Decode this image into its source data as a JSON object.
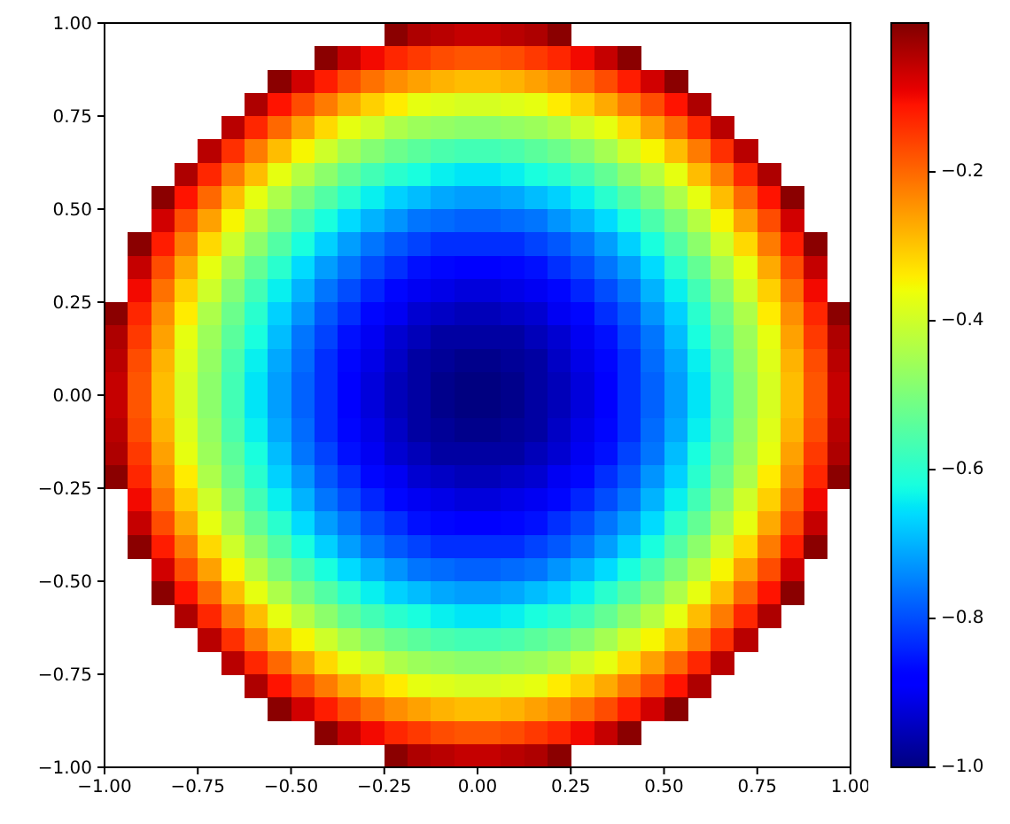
{
  "chart_data": {
    "type": "heatmap",
    "cells": [
      [
        null,
        null,
        null,
        null,
        null,
        null,
        null,
        null,
        null,
        null,
        null,
        null,
        -0.01,
        -0.04,
        -0.05,
        -0.06,
        -0.06,
        -0.05,
        -0.04,
        -0.01,
        null,
        null,
        null,
        null,
        null,
        null,
        null,
        null,
        null,
        null,
        null,
        null
      ],
      [
        null,
        null,
        null,
        null,
        null,
        null,
        null,
        null,
        null,
        -0.01,
        -0.06,
        -0.1,
        -0.13,
        -0.15,
        -0.17,
        -0.18,
        -0.18,
        -0.17,
        -0.15,
        -0.13,
        -0.1,
        -0.06,
        -0.01,
        null,
        null,
        null,
        null,
        null,
        null,
        null,
        null,
        null
      ],
      [
        null,
        null,
        null,
        null,
        null,
        null,
        null,
        -0.01,
        -0.07,
        -0.12,
        -0.17,
        -0.21,
        -0.24,
        -0.26,
        -0.28,
        -0.29,
        -0.29,
        -0.28,
        -0.26,
        -0.24,
        -0.21,
        -0.17,
        -0.12,
        -0.07,
        -0.01,
        null,
        null,
        null,
        null,
        null,
        null,
        null
      ],
      [
        null,
        null,
        null,
        null,
        null,
        null,
        -0.04,
        -0.11,
        -0.17,
        -0.22,
        -0.27,
        -0.31,
        -0.34,
        -0.37,
        -0.38,
        -0.39,
        -0.39,
        -0.38,
        -0.37,
        -0.34,
        -0.31,
        -0.27,
        -0.22,
        -0.17,
        -0.11,
        -0.04,
        null,
        null,
        null,
        null,
        null,
        null
      ],
      [
        null,
        null,
        null,
        null,
        null,
        -0.05,
        -0.13,
        -0.2,
        -0.26,
        -0.32,
        -0.37,
        -0.4,
        -0.44,
        -0.46,
        -0.47,
        -0.48,
        -0.48,
        -0.47,
        -0.46,
        -0.44,
        -0.4,
        -0.37,
        -0.32,
        -0.26,
        -0.2,
        -0.13,
        -0.05,
        null,
        null,
        null,
        null,
        null
      ],
      [
        null,
        null,
        null,
        null,
        -0.05,
        -0.14,
        -0.22,
        -0.29,
        -0.35,
        -0.4,
        -0.45,
        -0.49,
        -0.52,
        -0.54,
        -0.56,
        -0.57,
        -0.57,
        -0.56,
        -0.54,
        -0.52,
        -0.49,
        -0.45,
        -0.4,
        -0.35,
        -0.29,
        -0.22,
        -0.14,
        -0.05,
        null,
        null,
        null,
        null
      ],
      [
        null,
        null,
        null,
        -0.04,
        -0.13,
        -0.22,
        -0.29,
        -0.37,
        -0.43,
        -0.48,
        -0.53,
        -0.57,
        -0.6,
        -0.62,
        -0.64,
        -0.65,
        -0.65,
        -0.64,
        -0.62,
        -0.6,
        -0.57,
        -0.53,
        -0.48,
        -0.43,
        -0.37,
        -0.29,
        -0.22,
        -0.13,
        -0.04,
        null,
        null,
        null
      ],
      [
        null,
        null,
        -0.01,
        -0.11,
        -0.2,
        -0.29,
        -0.37,
        -0.44,
        -0.5,
        -0.55,
        -0.6,
        -0.64,
        -0.67,
        -0.69,
        -0.71,
        -0.72,
        -0.72,
        -0.71,
        -0.69,
        -0.67,
        -0.64,
        -0.6,
        -0.55,
        -0.5,
        -0.44,
        -0.37,
        -0.29,
        -0.2,
        -0.11,
        -0.01,
        null,
        null
      ],
      [
        null,
        null,
        -0.07,
        -0.17,
        -0.26,
        -0.35,
        -0.43,
        -0.5,
        -0.56,
        -0.62,
        -0.66,
        -0.7,
        -0.73,
        -0.76,
        -0.77,
        -0.78,
        -0.78,
        -0.77,
        -0.76,
        -0.73,
        -0.7,
        -0.66,
        -0.62,
        -0.56,
        -0.5,
        -0.43,
        -0.35,
        -0.26,
        -0.17,
        -0.07,
        null,
        null
      ],
      [
        null,
        -0.01,
        -0.12,
        -0.22,
        -0.32,
        -0.4,
        -0.48,
        -0.55,
        -0.62,
        -0.67,
        -0.72,
        -0.76,
        -0.79,
        -0.81,
        -0.83,
        -0.83,
        -0.83,
        -0.83,
        -0.81,
        -0.79,
        -0.76,
        -0.72,
        -0.67,
        -0.62,
        -0.55,
        -0.48,
        -0.4,
        -0.32,
        -0.22,
        -0.12,
        -0.01,
        null
      ],
      [
        null,
        -0.06,
        -0.17,
        -0.27,
        -0.37,
        -0.45,
        -0.53,
        -0.6,
        -0.66,
        -0.72,
        -0.76,
        -0.8,
        -0.83,
        -0.86,
        -0.87,
        -0.88,
        -0.88,
        -0.87,
        -0.86,
        -0.83,
        -0.8,
        -0.76,
        -0.72,
        -0.66,
        -0.6,
        -0.53,
        -0.45,
        -0.37,
        -0.27,
        -0.17,
        -0.06,
        null
      ],
      [
        null,
        -0.1,
        -0.21,
        -0.31,
        -0.4,
        -0.49,
        -0.57,
        -0.64,
        -0.7,
        -0.76,
        -0.8,
        -0.84,
        -0.87,
        -0.9,
        -0.91,
        -0.92,
        -0.92,
        -0.91,
        -0.9,
        -0.87,
        -0.84,
        -0.8,
        -0.76,
        -0.7,
        -0.64,
        -0.57,
        -0.49,
        -0.4,
        -0.31,
        -0.21,
        -0.1,
        null
      ],
      [
        -0.01,
        -0.13,
        -0.24,
        -0.34,
        -0.44,
        -0.52,
        -0.6,
        -0.67,
        -0.73,
        -0.79,
        -0.83,
        -0.87,
        -0.9,
        -0.93,
        -0.94,
        -0.95,
        -0.95,
        -0.94,
        -0.93,
        -0.9,
        -0.87,
        -0.83,
        -0.79,
        -0.73,
        -0.67,
        -0.6,
        -0.52,
        -0.44,
        -0.34,
        -0.24,
        -0.13,
        -0.01
      ],
      [
        -0.04,
        -0.15,
        -0.26,
        -0.37,
        -0.46,
        -0.54,
        -0.62,
        -0.69,
        -0.76,
        -0.81,
        -0.86,
        -0.9,
        -0.93,
        -0.95,
        -0.97,
        -0.97,
        -0.97,
        -0.97,
        -0.95,
        -0.93,
        -0.9,
        -0.86,
        -0.81,
        -0.76,
        -0.69,
        -0.62,
        -0.54,
        -0.46,
        -0.37,
        -0.26,
        -0.15,
        -0.04
      ],
      [
        -0.05,
        -0.17,
        -0.28,
        -0.38,
        -0.47,
        -0.56,
        -0.64,
        -0.71,
        -0.77,
        -0.83,
        -0.87,
        -0.91,
        -0.94,
        -0.97,
        -0.98,
        -0.99,
        -0.99,
        -0.98,
        -0.97,
        -0.94,
        -0.91,
        -0.87,
        -0.83,
        -0.77,
        -0.71,
        -0.64,
        -0.56,
        -0.47,
        -0.38,
        -0.28,
        -0.17,
        -0.05
      ],
      [
        -0.06,
        -0.18,
        -0.29,
        -0.39,
        -0.48,
        -0.57,
        -0.65,
        -0.72,
        -0.78,
        -0.83,
        -0.88,
        -0.92,
        -0.95,
        -0.97,
        -0.99,
        -1.0,
        -1.0,
        -0.99,
        -0.97,
        -0.95,
        -0.92,
        -0.88,
        -0.83,
        -0.78,
        -0.72,
        -0.65,
        -0.57,
        -0.48,
        -0.39,
        -0.29,
        -0.18,
        -0.06
      ],
      [
        -0.06,
        -0.18,
        -0.29,
        -0.39,
        -0.48,
        -0.57,
        -0.65,
        -0.72,
        -0.78,
        -0.83,
        -0.88,
        -0.92,
        -0.95,
        -0.97,
        -0.99,
        -1.0,
        -1.0,
        -0.99,
        -0.97,
        -0.95,
        -0.92,
        -0.88,
        -0.83,
        -0.78,
        -0.72,
        -0.65,
        -0.57,
        -0.48,
        -0.39,
        -0.29,
        -0.18,
        -0.06
      ],
      [
        -0.05,
        -0.17,
        -0.28,
        -0.38,
        -0.47,
        -0.56,
        -0.64,
        -0.71,
        -0.77,
        -0.83,
        -0.87,
        -0.91,
        -0.94,
        -0.97,
        -0.98,
        -0.99,
        -0.99,
        -0.98,
        -0.97,
        -0.94,
        -0.91,
        -0.87,
        -0.83,
        -0.77,
        -0.71,
        -0.64,
        -0.56,
        -0.47,
        -0.38,
        -0.28,
        -0.17,
        -0.05
      ],
      [
        -0.04,
        -0.15,
        -0.26,
        -0.37,
        -0.46,
        -0.54,
        -0.62,
        -0.69,
        -0.76,
        -0.81,
        -0.86,
        -0.9,
        -0.93,
        -0.95,
        -0.97,
        -0.97,
        -0.97,
        -0.97,
        -0.95,
        -0.93,
        -0.9,
        -0.86,
        -0.81,
        -0.76,
        -0.69,
        -0.62,
        -0.54,
        -0.46,
        -0.37,
        -0.26,
        -0.15,
        -0.04
      ],
      [
        -0.01,
        -0.13,
        -0.24,
        -0.34,
        -0.44,
        -0.52,
        -0.6,
        -0.67,
        -0.73,
        -0.79,
        -0.83,
        -0.87,
        -0.9,
        -0.93,
        -0.94,
        -0.95,
        -0.95,
        -0.94,
        -0.93,
        -0.9,
        -0.87,
        -0.83,
        -0.79,
        -0.73,
        -0.67,
        -0.6,
        -0.52,
        -0.44,
        -0.34,
        -0.24,
        -0.13,
        -0.01
      ],
      [
        null,
        -0.1,
        -0.21,
        -0.31,
        -0.4,
        -0.49,
        -0.57,
        -0.64,
        -0.7,
        -0.76,
        -0.8,
        -0.84,
        -0.87,
        -0.9,
        -0.91,
        -0.92,
        -0.92,
        -0.91,
        -0.9,
        -0.87,
        -0.84,
        -0.8,
        -0.76,
        -0.7,
        -0.64,
        -0.57,
        -0.49,
        -0.4,
        -0.31,
        -0.21,
        -0.1,
        null
      ],
      [
        null,
        -0.06,
        -0.17,
        -0.27,
        -0.37,
        -0.45,
        -0.53,
        -0.6,
        -0.66,
        -0.72,
        -0.76,
        -0.8,
        -0.83,
        -0.86,
        -0.87,
        -0.88,
        -0.88,
        -0.87,
        -0.86,
        -0.83,
        -0.8,
        -0.76,
        -0.72,
        -0.66,
        -0.6,
        -0.53,
        -0.45,
        -0.37,
        -0.27,
        -0.17,
        -0.06,
        null
      ],
      [
        null,
        -0.01,
        -0.12,
        -0.22,
        -0.32,
        -0.4,
        -0.48,
        -0.55,
        -0.62,
        -0.67,
        -0.72,
        -0.76,
        -0.79,
        -0.81,
        -0.83,
        -0.83,
        -0.83,
        -0.83,
        -0.81,
        -0.79,
        -0.76,
        -0.72,
        -0.67,
        -0.62,
        -0.55,
        -0.48,
        -0.4,
        -0.32,
        -0.22,
        -0.12,
        -0.01,
        null
      ],
      [
        null,
        null,
        -0.07,
        -0.17,
        -0.26,
        -0.35,
        -0.43,
        -0.5,
        -0.56,
        -0.62,
        -0.66,
        -0.7,
        -0.73,
        -0.76,
        -0.77,
        -0.78,
        -0.78,
        -0.77,
        -0.76,
        -0.73,
        -0.7,
        -0.66,
        -0.62,
        -0.56,
        -0.5,
        -0.43,
        -0.35,
        -0.26,
        -0.17,
        -0.07,
        null,
        null
      ],
      [
        null,
        null,
        -0.01,
        -0.11,
        -0.2,
        -0.29,
        -0.37,
        -0.44,
        -0.5,
        -0.55,
        -0.6,
        -0.64,
        -0.67,
        -0.69,
        -0.71,
        -0.72,
        -0.72,
        -0.71,
        -0.69,
        -0.67,
        -0.64,
        -0.6,
        -0.55,
        -0.5,
        -0.44,
        -0.37,
        -0.29,
        -0.2,
        -0.11,
        -0.01,
        null,
        null
      ],
      [
        null,
        null,
        null,
        -0.04,
        -0.13,
        -0.22,
        -0.29,
        -0.37,
        -0.43,
        -0.48,
        -0.53,
        -0.57,
        -0.6,
        -0.62,
        -0.64,
        -0.65,
        -0.65,
        -0.64,
        -0.62,
        -0.6,
        -0.57,
        -0.53,
        -0.48,
        -0.43,
        -0.37,
        -0.29,
        -0.22,
        -0.13,
        -0.04,
        null,
        null,
        null
      ],
      [
        null,
        null,
        null,
        null,
        -0.05,
        -0.14,
        -0.22,
        -0.29,
        -0.35,
        -0.4,
        -0.45,
        -0.49,
        -0.52,
        -0.54,
        -0.56,
        -0.57,
        -0.57,
        -0.56,
        -0.54,
        -0.52,
        -0.49,
        -0.45,
        -0.4,
        -0.35,
        -0.29,
        -0.22,
        -0.14,
        -0.05,
        null,
        null,
        null,
        null
      ],
      [
        null,
        null,
        null,
        null,
        null,
        -0.05,
        -0.13,
        -0.2,
        -0.26,
        -0.32,
        -0.37,
        -0.4,
        -0.44,
        -0.46,
        -0.47,
        -0.48,
        -0.48,
        -0.47,
        -0.46,
        -0.44,
        -0.4,
        -0.37,
        -0.32,
        -0.26,
        -0.2,
        -0.13,
        -0.05,
        null,
        null,
        null,
        null,
        null
      ],
      [
        null,
        null,
        null,
        null,
        null,
        null,
        -0.04,
        -0.11,
        -0.17,
        -0.22,
        -0.27,
        -0.31,
        -0.34,
        -0.37,
        -0.38,
        -0.39,
        -0.39,
        -0.38,
        -0.37,
        -0.34,
        -0.31,
        -0.27,
        -0.22,
        -0.17,
        -0.11,
        -0.04,
        null,
        null,
        null,
        null,
        null,
        null
      ],
      [
        null,
        null,
        null,
        null,
        null,
        null,
        null,
        -0.01,
        -0.07,
        -0.12,
        -0.17,
        -0.21,
        -0.24,
        -0.26,
        -0.28,
        -0.29,
        -0.29,
        -0.28,
        -0.26,
        -0.24,
        -0.21,
        -0.17,
        -0.12,
        -0.07,
        -0.01,
        null,
        null,
        null,
        null,
        null,
        null,
        null
      ],
      [
        null,
        null,
        null,
        null,
        null,
        null,
        null,
        null,
        null,
        -0.01,
        -0.06,
        -0.1,
        -0.13,
        -0.15,
        -0.17,
        -0.18,
        -0.18,
        -0.17,
        -0.15,
        -0.13,
        -0.1,
        -0.06,
        -0.01,
        null,
        null,
        null,
        null,
        null,
        null,
        null,
        null,
        null
      ],
      [
        null,
        null,
        null,
        null,
        null,
        null,
        null,
        null,
        null,
        null,
        null,
        null,
        -0.01,
        -0.04,
        -0.05,
        -0.06,
        -0.06,
        -0.05,
        -0.04,
        -0.01,
        null,
        null,
        null,
        null,
        null,
        null,
        null,
        null,
        null,
        null,
        null,
        null
      ]
    ],
    "clim": [
      -1.0,
      0.0
    ],
    "cticks": [
      {
        "value": -1.0,
        "label": "−1.0"
      },
      {
        "value": -0.8,
        "label": "−0.8"
      },
      {
        "value": -0.6,
        "label": "−0.6"
      },
      {
        "value": -0.4,
        "label": "−0.4"
      },
      {
        "value": -0.2,
        "label": "−0.2"
      }
    ],
    "xlim": [
      -1.0,
      1.0
    ],
    "xticks": [
      {
        "value": -1.0,
        "label": "−1.00"
      },
      {
        "value": -0.75,
        "label": "−0.75"
      },
      {
        "value": -0.5,
        "label": "−0.50"
      },
      {
        "value": -0.25,
        "label": "−0.25"
      },
      {
        "value": 0,
        "label": "0.00"
      },
      {
        "value": 0.25,
        "label": "0.25"
      },
      {
        "value": 0.5,
        "label": "0.50"
      },
      {
        "value": 0.75,
        "label": "0.75"
      },
      {
        "value": 1.0,
        "label": "1.00"
      }
    ],
    "ylim": [
      -1.0,
      1.0
    ],
    "yticks": [
      {
        "value": -1.0,
        "label": "−1.00"
      },
      {
        "value": -0.75,
        "label": "−0.75"
      },
      {
        "value": -0.5,
        "label": "−0.50"
      },
      {
        "value": -0.25,
        "label": "−0.25"
      },
      {
        "value": 0,
        "label": "0.00"
      },
      {
        "value": 0.25,
        "label": "0.25"
      },
      {
        "value": 0.5,
        "label": "0.50"
      },
      {
        "value": 0.75,
        "label": "0.75"
      },
      {
        "value": 1.0,
        "label": "1.00"
      }
    ]
  }
}
